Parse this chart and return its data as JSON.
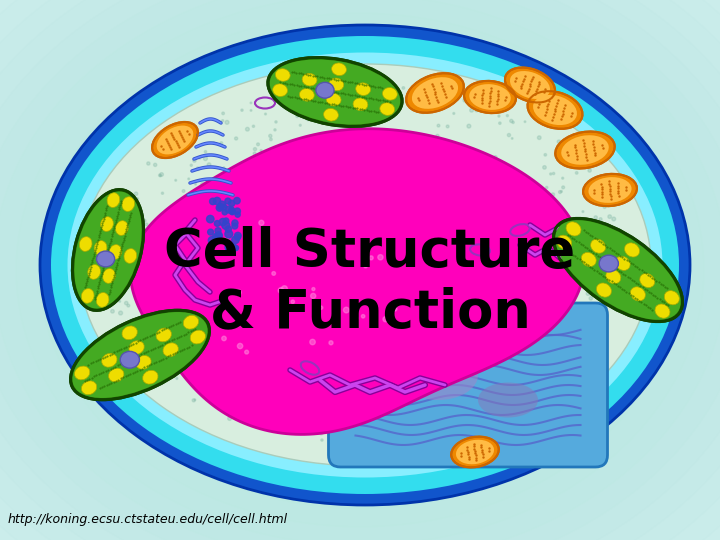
{
  "title_line1": "Cell Structure",
  "title_line2": "& Function",
  "title_color": "#000000",
  "title_fontsize": 38,
  "url_text": "http://koning.ecsu.ctstateu.edu/cell/cell.html",
  "url_fontsize": 9,
  "url_color": "#000000",
  "outer_bg": "#e8f5f5",
  "cell_blue_outer": "#1155cc",
  "cell_cyan": "#33ccee",
  "cell_inner_bg": "#c8e8d8",
  "nucleus_pink": "#ff00bb",
  "vacuole_blue": "#55aadd",
  "vacuole_stripe": "#6677cc",
  "chloroplast_outer": "#226600",
  "chloroplast_mid": "#44aa22",
  "chloroplast_yellow": "#eedd00",
  "chloroplast_nucleus": "#5566bb",
  "mito_orange": "#ee8800",
  "mito_inner": "#ffcc44",
  "er_purple": "#9922bb",
  "er_light": "#cc66ee",
  "bg_gradient_color": "#c0eee8"
}
